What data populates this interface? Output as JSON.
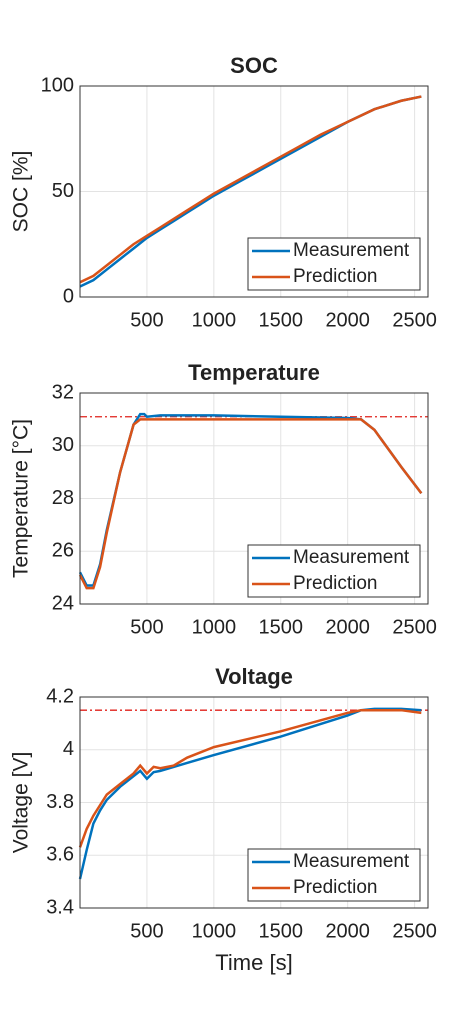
{
  "chart_data": [
    {
      "type": "line",
      "title": "SOC",
      "y_label": "SOC [%]",
      "x": [
        0,
        100,
        200,
        300,
        400,
        500,
        600,
        700,
        800,
        900,
        1000,
        1200,
        1400,
        1600,
        1800,
        2000,
        2200,
        2400,
        2550
      ],
      "series": [
        {
          "name": "Measurement",
          "color": "#0072BD",
          "values": [
            5,
            8,
            13,
            18,
            23,
            28,
            32,
            36,
            40,
            44,
            48,
            55,
            62,
            69,
            76,
            83,
            89,
            93,
            95
          ]
        },
        {
          "name": "Prediction",
          "color": "#D95319",
          "values": [
            7,
            10,
            15,
            20,
            25,
            29,
            33,
            37,
            41,
            45,
            49,
            56,
            63,
            70,
            77,
            83,
            89,
            93,
            95
          ]
        }
      ],
      "xlim": [
        0,
        2600
      ],
      "xticks": [
        500,
        1000,
        1500,
        2000,
        2500
      ],
      "ylim": [
        0,
        100
      ],
      "yticks": [
        0,
        50,
        100
      ],
      "grid": true,
      "legend": "lower right"
    },
    {
      "type": "line",
      "title": "Temperature",
      "y_label": "Temperature [°C]",
      "x": [
        0,
        50,
        100,
        150,
        200,
        300,
        400,
        450,
        480,
        500,
        600,
        800,
        1000,
        1500,
        2000,
        2100,
        2200,
        2300,
        2400,
        2550
      ],
      "series": [
        {
          "name": "Measurement",
          "color": "#0072BD",
          "values": [
            25.2,
            24.7,
            24.7,
            25.5,
            26.8,
            29.0,
            30.8,
            31.2,
            31.2,
            31.1,
            31.15,
            31.15,
            31.15,
            31.1,
            31.05,
            31.0,
            30.6,
            29.9,
            29.2,
            28.2
          ]
        },
        {
          "name": "Prediction",
          "color": "#D95319",
          "values": [
            25.1,
            24.6,
            24.6,
            25.4,
            26.7,
            29.0,
            30.8,
            31.0,
            31.0,
            31.0,
            31.0,
            31.0,
            31.0,
            31.0,
            31.0,
            31.0,
            30.6,
            29.9,
            29.2,
            28.2
          ]
        }
      ],
      "reference_line": {
        "value": 31.1,
        "color": "#E0201B"
      },
      "xlim": [
        0,
        2600
      ],
      "xticks": [
        500,
        1000,
        1500,
        2000,
        2500
      ],
      "ylim": [
        24,
        32
      ],
      "yticks": [
        24,
        26,
        28,
        30,
        32
      ],
      "grid": true,
      "legend": "lower right"
    },
    {
      "type": "line",
      "title": "Voltage",
      "y_label": "Voltage [V]",
      "x_label": "Time [s]",
      "x": [
        0,
        50,
        100,
        150,
        200,
        300,
        400,
        450,
        500,
        550,
        600,
        700,
        800,
        1000,
        1500,
        2000,
        2100,
        2200,
        2400,
        2550
      ],
      "series": [
        {
          "name": "Measurement",
          "color": "#0072BD",
          "values": [
            3.51,
            3.62,
            3.72,
            3.77,
            3.81,
            3.86,
            3.9,
            3.92,
            3.89,
            3.915,
            3.92,
            3.935,
            3.95,
            3.98,
            4.05,
            4.13,
            4.15,
            4.155,
            4.155,
            4.15
          ]
        },
        {
          "name": "Prediction",
          "color": "#D95319",
          "values": [
            3.63,
            3.7,
            3.75,
            3.79,
            3.83,
            3.87,
            3.91,
            3.94,
            3.91,
            3.935,
            3.93,
            3.94,
            3.97,
            4.01,
            4.07,
            4.14,
            4.15,
            4.15,
            4.15,
            4.14
          ]
        }
      ],
      "reference_line": {
        "value": 4.15,
        "color": "#E0201B"
      },
      "xlim": [
        0,
        2600
      ],
      "xticks": [
        500,
        1000,
        1500,
        2000,
        2500
      ],
      "ylim": [
        3.4,
        4.2
      ],
      "yticks": [
        3.4,
        3.6,
        3.8,
        4,
        4.2
      ],
      "grid": true,
      "legend": "lower right"
    }
  ]
}
